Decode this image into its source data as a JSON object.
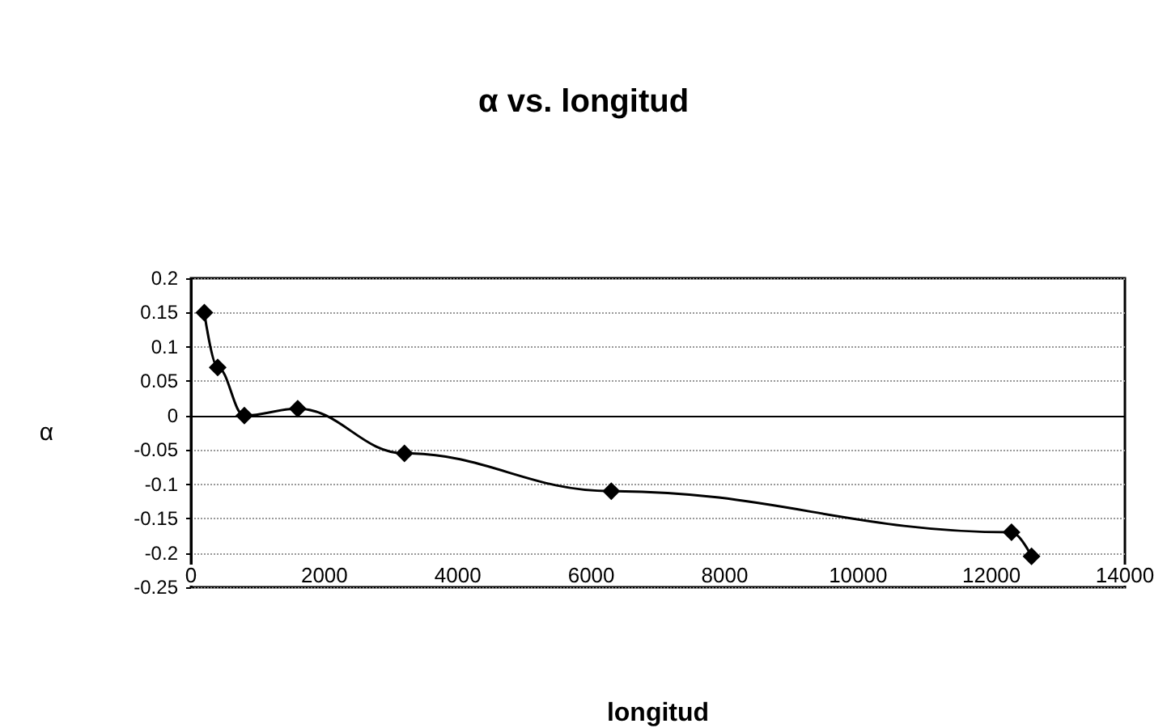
{
  "chart_data": {
    "type": "line",
    "title": "α vs. longitud",
    "xlabel": "longitud",
    "ylabel": "α",
    "x": [
      200,
      400,
      800,
      1600,
      3200,
      6300,
      12300,
      12600
    ],
    "series": [
      {
        "color": "#000000",
        "values": [
          0.15,
          0.07,
          0.0,
          0.01,
          -0.055,
          -0.11,
          -0.17,
          -0.205
        ]
      }
    ],
    "xlim": [
      0,
      14000
    ],
    "xticks": [
      0,
      2000,
      4000,
      6000,
      8000,
      10000,
      12000,
      14000
    ],
    "ylim": [
      -0.25,
      0.2
    ],
    "yticks": [
      -0.25,
      -0.2,
      -0.15,
      -0.1,
      -0.05,
      0,
      0.05,
      0.1,
      0.15,
      0.2
    ],
    "grid": "y",
    "marker": "diamond",
    "line_style": "solid"
  }
}
